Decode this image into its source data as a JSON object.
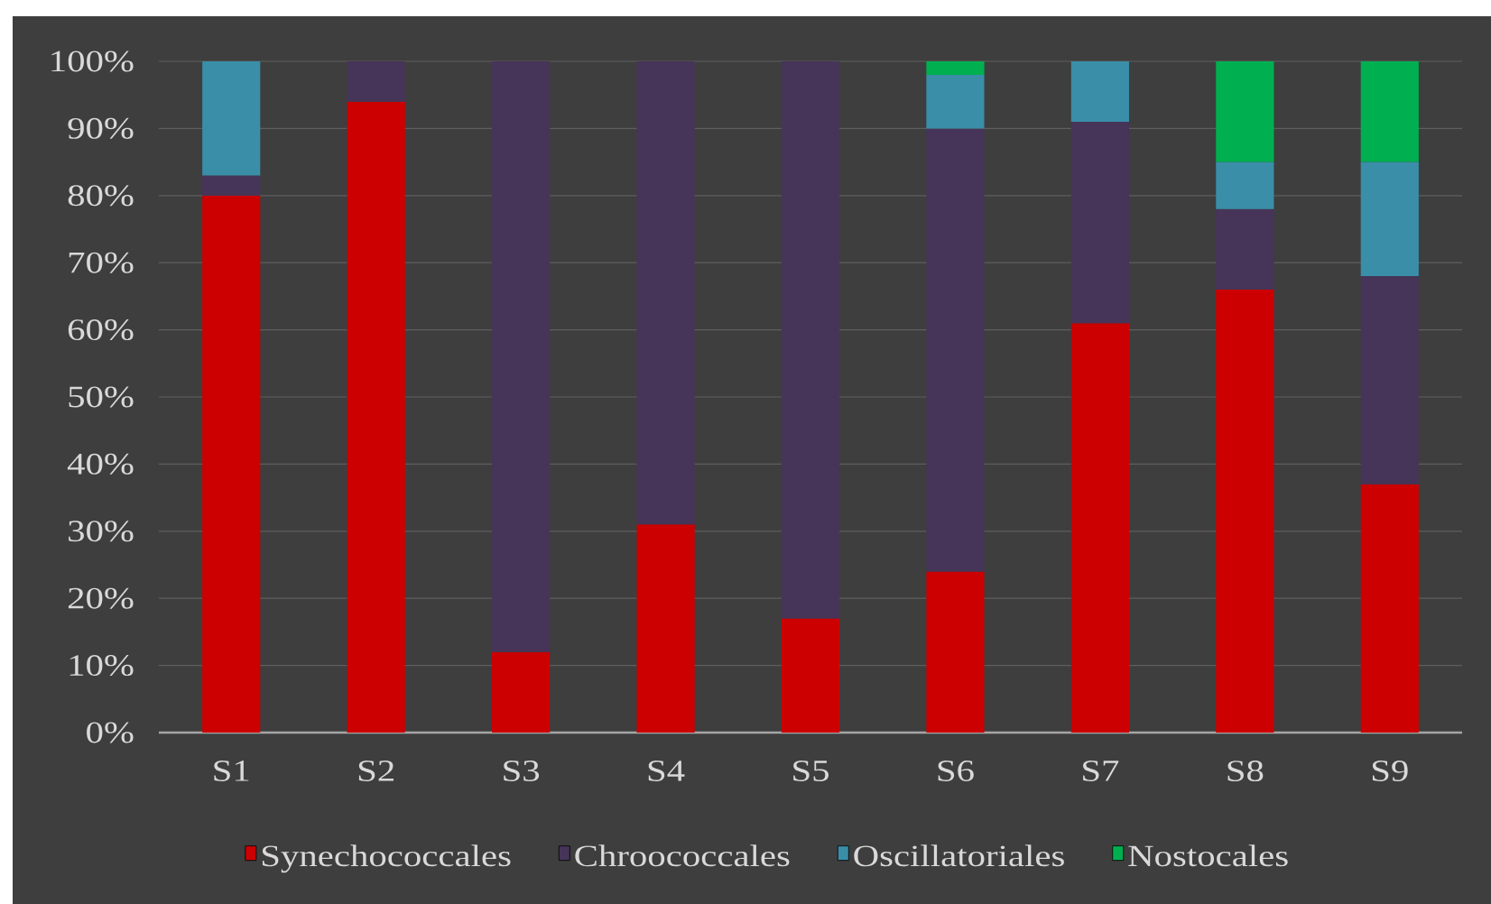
{
  "chart_data": {
    "type": "bar",
    "stacked": true,
    "categories": [
      "S1",
      "S2",
      "S3",
      "S4",
      "S5",
      "S6",
      "S7",
      "S8",
      "S9"
    ],
    "series": [
      {
        "name": "Synechococcales",
        "color": "#cc0000",
        "values": [
          80,
          94,
          12,
          31,
          17,
          24,
          61,
          66,
          37
        ]
      },
      {
        "name": "Chroococcales",
        "color": "#463558",
        "values": [
          3,
          6,
          88,
          69,
          83,
          66,
          30,
          12,
          31
        ]
      },
      {
        "name": "Oscillatoriales",
        "color": "#3a8ea8",
        "values": [
          17,
          null,
          null,
          null,
          null,
          8,
          9,
          7,
          17
        ]
      },
      {
        "name": "Nostocales",
        "color": "#00b050",
        "values": [
          null,
          null,
          null,
          null,
          null,
          2,
          null,
          15,
          15
        ]
      }
    ],
    "ylim": [
      0,
      100
    ],
    "yticks": [
      {
        "value": 0,
        "label": "0%"
      },
      {
        "value": 10,
        "label": "10%"
      },
      {
        "value": 20,
        "label": "20%"
      },
      {
        "value": 30,
        "label": "30%"
      },
      {
        "value": 40,
        "label": "40%"
      },
      {
        "value": 50,
        "label": "50%"
      },
      {
        "value": 60,
        "label": "60%"
      },
      {
        "value": 70,
        "label": "70%"
      },
      {
        "value": 80,
        "label": "80%"
      },
      {
        "value": 90,
        "label": "90%"
      },
      {
        "value": 100,
        "label": "100%"
      }
    ],
    "grid": "y",
    "legend": "bottom"
  }
}
